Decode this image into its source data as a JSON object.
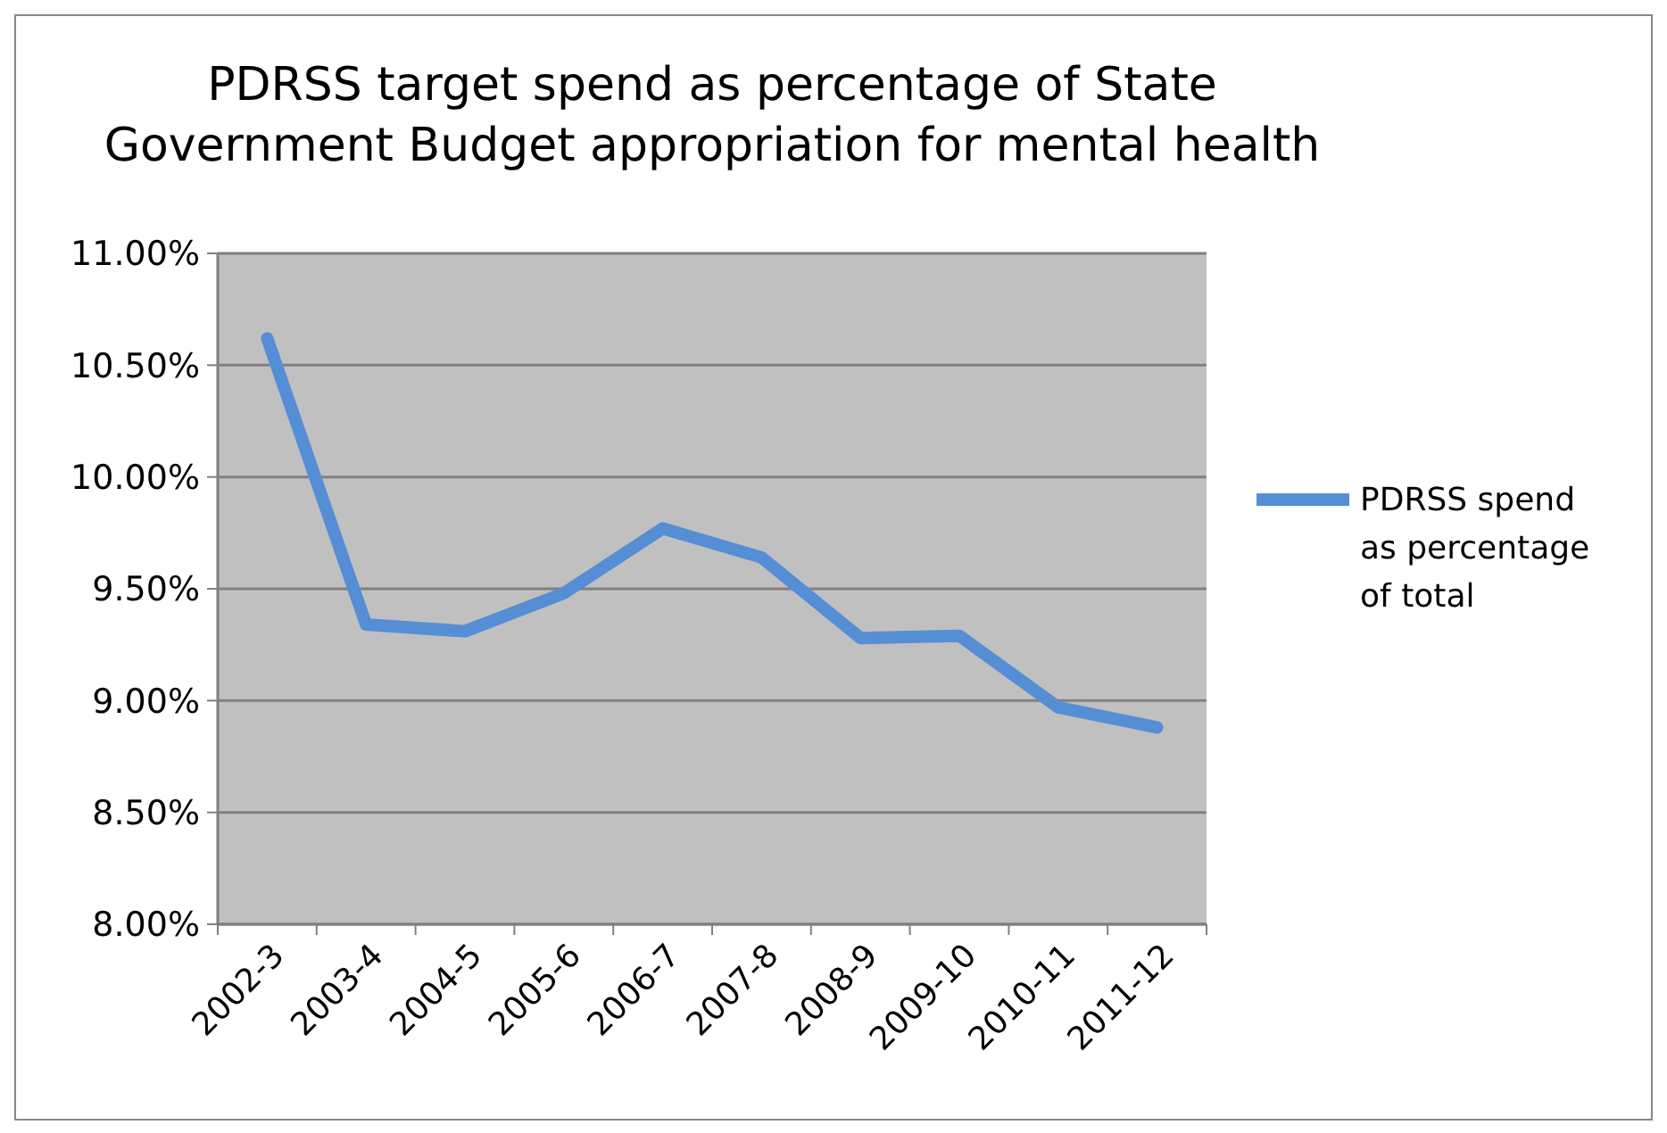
{
  "chart_data": {
    "type": "line",
    "title": "PDRSS target spend as percentage of State Government Budget  appropriation for mental health",
    "categories": [
      "2002-3",
      "2003-4",
      "2004-5",
      "2005-6",
      "2006-7",
      "2007-8",
      "2008-9",
      "2009-10",
      "2010-11",
      "2011-12"
    ],
    "series": [
      {
        "name": "PDRSS spend as percentage of total",
        "color": "#558ed5",
        "values": [
          10.62,
          9.34,
          9.31,
          9.48,
          9.77,
          9.64,
          9.28,
          9.29,
          8.97,
          8.88
        ]
      }
    ],
    "ylim": [
      8,
      11
    ],
    "yticks": [
      {
        "value": 8,
        "label": "8.00%"
      },
      {
        "value": 8.5,
        "label": "8.50%"
      },
      {
        "value": 9,
        "label": "9.00%"
      },
      {
        "value": 9.5,
        "label": "9.50%"
      },
      {
        "value": 10,
        "label": "10.00%"
      },
      {
        "value": 10.5,
        "label": "10.50%"
      },
      {
        "value": 11,
        "label": "11.00%"
      }
    ],
    "grid": "y",
    "legend": "right",
    "marker": "none",
    "line_style": "solid"
  }
}
